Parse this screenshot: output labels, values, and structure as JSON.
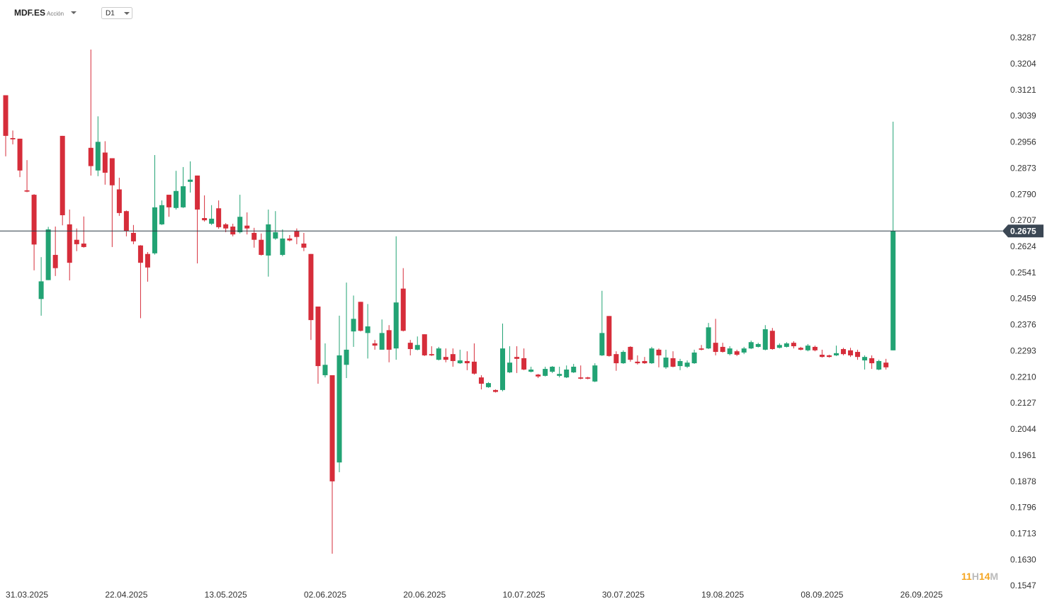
{
  "header": {
    "symbol": "MDF.ES",
    "asset_type": "Acción",
    "timeframe": "D1"
  },
  "countdown": {
    "hours": 11,
    "hours_unit": "H",
    "minutes": 14,
    "minutes_unit": "M"
  },
  "chart_data": {
    "type": "candlestick",
    "up_color": "#22a374",
    "down_color": "#d62d3a",
    "price_line_color": "#2c3a47",
    "price_line": 0.2675,
    "ylim": [
      0.1547,
      0.3287
    ],
    "yticks": [
      0.3287,
      0.3204,
      0.3121,
      0.3039,
      0.2956,
      0.2873,
      {
        "value": 0.279,
        "label": "0.2790"
      },
      0.2707,
      0.2624,
      0.2541,
      0.2459,
      0.2376,
      0.2293,
      {
        "value": 0.221,
        "label": "0.2210"
      },
      0.2127,
      0.2044,
      0.1961,
      0.1878,
      0.1796,
      0.1713,
      {
        "value": 0.163,
        "label": "0.1630"
      },
      0.1547
    ],
    "xlim": [
      -0.8,
      140.4
    ],
    "xticks": [
      {
        "value": 3,
        "label": "31.03.2025"
      },
      {
        "value": 17,
        "label": "22.04.2025"
      },
      {
        "value": 31,
        "label": "13.05.2025"
      },
      {
        "value": 45,
        "label": "02.06.2025"
      },
      {
        "value": 59,
        "label": "20.06.2025"
      },
      {
        "value": 73,
        "label": "10.07.2025"
      },
      {
        "value": 87,
        "label": "30.07.2025"
      },
      {
        "value": 101,
        "label": "19.08.2025"
      },
      {
        "value": 115,
        "label": "08.09.2025"
      },
      {
        "value": 129,
        "label": "26.09.2025"
      }
    ],
    "open": [
      0.3106,
      0.297,
      0.2968,
      0.2804,
      0.279,
      0.2459,
      0.2519,
      0.2599,
      0.2977,
      0.2696,
      0.2647,
      0.2635,
      0.2939,
      0.2867,
      0.2924,
      0.2906,
      0.2807,
      0.2738,
      0.2669,
      0.2629,
      0.2602,
      0.2604,
      0.2696,
      0.279,
      0.2748,
      0.275,
      0.2831,
      0.2851,
      0.2716,
      0.2698,
      0.2747,
      0.2696,
      0.2689,
      0.2671,
      0.2692,
      0.2669,
      0.2647,
      0.2597,
      0.2651,
      0.2599,
      0.2651,
      0.2674,
      0.2635,
      0.2602,
      0.2435,
      0.2217,
      0.2217,
      0.194,
      0.225,
      0.2356,
      0.245,
      0.2351,
      0.2318,
      0.2298,
      0.236,
      0.2302,
      0.2492,
      0.232,
      0.2298,
      0.2347,
      0.2284,
      0.2266,
      0.2275,
      0.2284,
      0.2255,
      0.2262,
      0.226,
      0.221,
      0.2179,
      0.217,
      0.217,
      0.2226,
      0.2275,
      0.2271,
      0.2228,
      0.2219,
      0.2215,
      0.2228,
      0.2215,
      0.221,
      0.2226,
      0.221,
      0.221,
      0.2197,
      0.228,
      0.2405,
      0.2284,
      0.2255,
      0.2307,
      0.226,
      0.2262,
      0.2255,
      0.2298,
      0.2242,
      0.2271,
      0.2246,
      0.2244,
      0.2255,
      0.2302,
      0.2302,
      0.232,
      0.2307,
      0.2284,
      0.2293,
      0.2289,
      0.2302,
      0.2307,
      0.2298,
      0.2358,
      0.2304,
      0.2307,
      0.232,
      0.2304,
      0.2296,
      0.2307,
      0.2282,
      0.228,
      0.228,
      0.23,
      0.2296,
      0.2291,
      0.2264,
      0.2271,
      0.2235,
      0.2257,
      0.2296
    ],
    "high": [
      0.3106,
      0.2994,
      0.2968,
      0.29,
      0.2792,
      0.2592,
      0.2688,
      0.2689,
      0.2977,
      0.2743,
      0.2683,
      0.2721,
      0.3251,
      0.3039,
      0.296,
      0.2906,
      0.2844,
      0.274,
      0.2694,
      0.263,
      0.2608,
      0.2916,
      0.2772,
      0.279,
      0.2866,
      0.2878,
      0.2896,
      0.2851,
      0.2788,
      0.2757,
      0.2772,
      0.27,
      0.2698,
      0.279,
      0.2734,
      0.2685,
      0.2667,
      0.2743,
      0.2738,
      0.268,
      0.2662,
      0.2683,
      0.2669,
      0.2602,
      0.2435,
      0.2318,
      0.2217,
      0.2406,
      0.2511,
      0.247,
      0.245,
      0.2443,
      0.2329,
      0.2394,
      0.2376,
      0.2658,
      0.2557,
      0.2329,
      0.234,
      0.2347,
      0.2309,
      0.2307,
      0.2302,
      0.2302,
      0.2298,
      0.2293,
      0.2318,
      0.2217,
      0.2195,
      0.2172,
      0.2381,
      0.2309,
      0.2309,
      0.2302,
      0.2244,
      0.2221,
      0.2244,
      0.2246,
      0.2244,
      0.2248,
      0.2253,
      0.2248,
      0.2212,
      0.2255,
      0.2485,
      0.2405,
      0.2293,
      0.2296,
      0.2309,
      0.228,
      0.2275,
      0.2307,
      0.2302,
      0.2298,
      0.2293,
      0.2269,
      0.2264,
      0.2298,
      0.2313,
      0.2383,
      0.2396,
      0.232,
      0.2309,
      0.2298,
      0.2307,
      0.2327,
      0.232,
      0.2376,
      0.2367,
      0.2318,
      0.2322,
      0.2325,
      0.2307,
      0.2316,
      0.2311,
      0.2298,
      0.2282,
      0.2311,
      0.2304,
      0.2304,
      0.2298,
      0.228,
      0.228,
      0.2266,
      0.2269,
      0.3022
    ],
    "low": [
      0.2912,
      0.295,
      0.2846,
      0.2798,
      0.255,
      0.2406,
      0.2519,
      0.2532,
      0.2693,
      0.2518,
      0.2611,
      0.2622,
      0.2851,
      0.2849,
      0.2822,
      0.2624,
      0.2723,
      0.2658,
      0.2633,
      0.2398,
      0.2514,
      0.26,
      0.2694,
      0.272,
      0.2743,
      0.2748,
      0.2797,
      0.2572,
      0.2705,
      0.2694,
      0.2682,
      0.2671,
      0.2658,
      0.2667,
      0.2664,
      0.2622,
      0.2597,
      0.253,
      0.2647,
      0.2595,
      0.2642,
      0.2633,
      0.2611,
      0.2329,
      0.219,
      0.221,
      0.165,
      0.1909,
      0.2208,
      0.2307,
      0.2356,
      0.227,
      0.2298,
      0.2298,
      0.2258,
      0.2266,
      0.2356,
      0.228,
      0.2296,
      0.2278,
      0.2278,
      0.2264,
      0.2258,
      0.2244,
      0.2253,
      0.2233,
      0.2219,
      0.2172,
      0.2177,
      0.2162,
      0.2166,
      0.2224,
      0.2224,
      0.2233,
      0.2226,
      0.2208,
      0.2213,
      0.2224,
      0.221,
      0.2208,
      0.2224,
      0.2204,
      0.2204,
      0.2195,
      0.2278,
      0.2276,
      0.2231,
      0.2253,
      0.226,
      0.2251,
      0.2253,
      0.2253,
      0.2242,
      0.2237,
      0.2242,
      0.2233,
      0.224,
      0.2253,
      0.2296,
      0.23,
      0.228,
      0.2289,
      0.228,
      0.2278,
      0.2284,
      0.23,
      0.2305,
      0.2296,
      0.2298,
      0.2302,
      0.2305,
      0.2302,
      0.2296,
      0.2293,
      0.2293,
      0.2273,
      0.2273,
      0.2278,
      0.228,
      0.2275,
      0.2266,
      0.2235,
      0.2237,
      0.2233,
      0.2235,
      0.2296
    ],
    "close": [
      0.2977,
      0.2966,
      0.2867,
      0.28,
      0.2632,
      0.2515,
      0.268,
      0.2557,
      0.2725,
      0.2574,
      0.2633,
      0.2624,
      0.2881,
      0.2958,
      0.286,
      0.282,
      0.2732,
      0.2675,
      0.2642,
      0.2574,
      0.2559,
      0.275,
      0.2757,
      0.275,
      0.2802,
      0.2817,
      0.2838,
      0.2743,
      0.2709,
      0.2714,
      0.2687,
      0.2683,
      0.2664,
      0.272,
      0.2683,
      0.2647,
      0.2599,
      0.2696,
      0.2671,
      0.2651,
      0.2645,
      0.2656,
      0.2622,
      0.2392,
      0.2246,
      0.225,
      0.188,
      0.228,
      0.2298,
      0.2396,
      0.2358,
      0.2372,
      0.2311,
      0.2351,
      0.2298,
      0.2448,
      0.2358,
      0.23,
      0.2313,
      0.228,
      0.228,
      0.2302,
      0.2266,
      0.2262,
      0.2264,
      0.2255,
      0.2222,
      0.219,
      0.2192,
      0.2164,
      0.2302,
      0.2257,
      0.2269,
      0.2235,
      0.2235,
      0.2213,
      0.2237,
      0.2244,
      0.2221,
      0.2235,
      0.2244,
      0.2206,
      0.2206,
      0.2248,
      0.2351,
      0.2278,
      0.2255,
      0.2291,
      0.2266,
      0.2255,
      0.2255,
      0.2302,
      0.228,
      0.2273,
      0.2244,
      0.2262,
      0.2257,
      0.2289,
      0.2298,
      0.2369,
      0.2291,
      0.2291,
      0.2302,
      0.2282,
      0.2302,
      0.2322,
      0.2316,
      0.2363,
      0.23,
      0.2313,
      0.2318,
      0.2309,
      0.2298,
      0.2311,
      0.2296,
      0.2275,
      0.2275,
      0.2287,
      0.2284,
      0.228,
      0.2275,
      0.2275,
      0.2255,
      0.2262,
      0.2242,
      0.2675
    ]
  }
}
